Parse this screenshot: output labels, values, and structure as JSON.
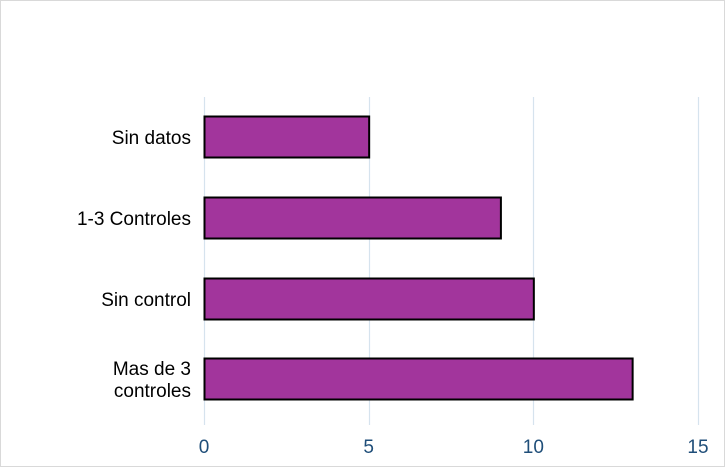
{
  "chart_data": {
    "type": "bar",
    "orientation": "horizontal",
    "categories": [
      "Sin datos",
      "1-3 Controles",
      "Sin control",
      "Mas de 3 controles"
    ],
    "category_lines": [
      [
        "Sin datos"
      ],
      [
        "1-3 Controles"
      ],
      [
        "Sin control"
      ],
      [
        "Mas de 3",
        "controles"
      ]
    ],
    "values": [
      5,
      9,
      10,
      13
    ],
    "xlim": [
      0,
      15
    ],
    "xticks": [
      0,
      5,
      10,
      15
    ],
    "title": "",
    "xlabel": "",
    "ylabel": "",
    "grid": "vertical",
    "legend": "none",
    "colors": {
      "bar_fill": "#a2359c",
      "bar_stroke": "#000000",
      "grid": "#d6e3ee",
      "tick_text": "#1f4e79",
      "label_text": "#000000"
    }
  }
}
